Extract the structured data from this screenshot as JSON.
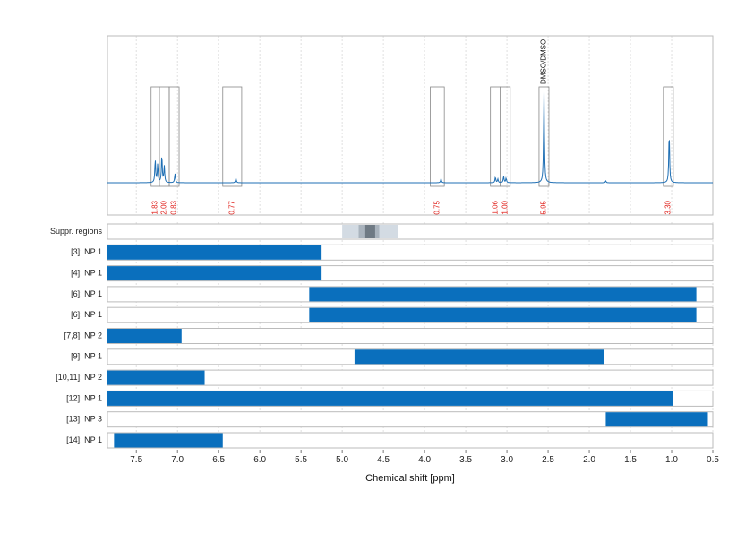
{
  "chart_data": {
    "type": "line",
    "xlabel": "Chemical shift [ppm]",
    "xlim": [
      7.85,
      0.5
    ],
    "x_reversed": true,
    "xticks": [
      "7.5",
      "7.0",
      "6.5",
      "6.0",
      "5.5",
      "5.0",
      "4.5",
      "4.0",
      "3.5",
      "3.0",
      "2.5",
      "2.0",
      "1.5",
      "1.0",
      "0.5"
    ],
    "gridlines": true,
    "colors": {
      "spectrum": "#1f6fb4",
      "bar": "#0a6fbd",
      "integral_label": "#e0201b",
      "box": "#888888",
      "frame": "#bbbbbb"
    },
    "spectrum_peaks": [
      {
        "x": 7.27,
        "height": 0.25
      },
      {
        "x": 7.24,
        "height": 0.2
      },
      {
        "x": 7.19,
        "height": 0.3
      },
      {
        "x": 7.16,
        "height": 0.18
      },
      {
        "x": 7.03,
        "height": 0.1
      },
      {
        "x": 6.29,
        "height": 0.05
      },
      {
        "x": 3.8,
        "height": 0.045
      },
      {
        "x": 3.14,
        "height": 0.06
      },
      {
        "x": 3.11,
        "height": 0.04
      },
      {
        "x": 3.04,
        "height": 0.07
      },
      {
        "x": 3.01,
        "height": 0.05
      },
      {
        "x": 2.55,
        "height": 1.0
      },
      {
        "x": 1.8,
        "height": 0.02
      },
      {
        "x": 1.03,
        "height": 0.55
      }
    ],
    "integral_regions": [
      {
        "from": 7.32,
        "to": 7.22,
        "label": "1.83"
      },
      {
        "from": 7.22,
        "to": 7.1,
        "label": "2.00"
      },
      {
        "from": 7.1,
        "to": 6.98,
        "label": "0.83"
      },
      {
        "from": 6.45,
        "to": 6.22,
        "label": "0.77"
      },
      {
        "from": 3.93,
        "to": 3.76,
        "label": "0.75"
      },
      {
        "from": 3.2,
        "to": 3.08,
        "label": "1.06"
      },
      {
        "from": 3.08,
        "to": 2.96,
        "label": "1.00"
      },
      {
        "from": 2.61,
        "to": 2.49,
        "label": "5.95",
        "annotation": "DMSO/DMSO"
      },
      {
        "from": 1.1,
        "to": 0.98,
        "label": "3.30"
      }
    ],
    "suppressed_regions": {
      "label": "Suppr. regions",
      "bands": [
        {
          "from": 5.0,
          "to": 4.32,
          "shade": "#d3dbe3"
        },
        {
          "from": 4.8,
          "to": 4.55,
          "shade": "#a9b3bd"
        },
        {
          "from": 4.72,
          "to": 4.6,
          "shade": "#6f7a84"
        }
      ]
    },
    "rows": [
      {
        "label": "[3]; NP 1",
        "from": 7.85,
        "to": 5.25
      },
      {
        "label": "[4]; NP 1",
        "from": 7.85,
        "to": 5.25
      },
      {
        "label": "[6]; NP 1",
        "from": 5.4,
        "to": 0.7
      },
      {
        "label": "[6]; NP 1",
        "from": 5.4,
        "to": 0.7
      },
      {
        "label": "[7,8]; NP 2",
        "from": 7.85,
        "to": 6.95
      },
      {
        "label": "[9]; NP 1",
        "from": 4.85,
        "to": 1.82
      },
      {
        "label": "[10,11]; NP 2",
        "from": 7.85,
        "to": 6.67
      },
      {
        "label": "[12]; NP 1",
        "from": 7.85,
        "to": 0.98
      },
      {
        "label": "[13]; NP 3",
        "from": 1.8,
        "to": 0.56
      },
      {
        "label": "[14]; NP 1",
        "from": 7.77,
        "to": 6.45
      }
    ]
  }
}
